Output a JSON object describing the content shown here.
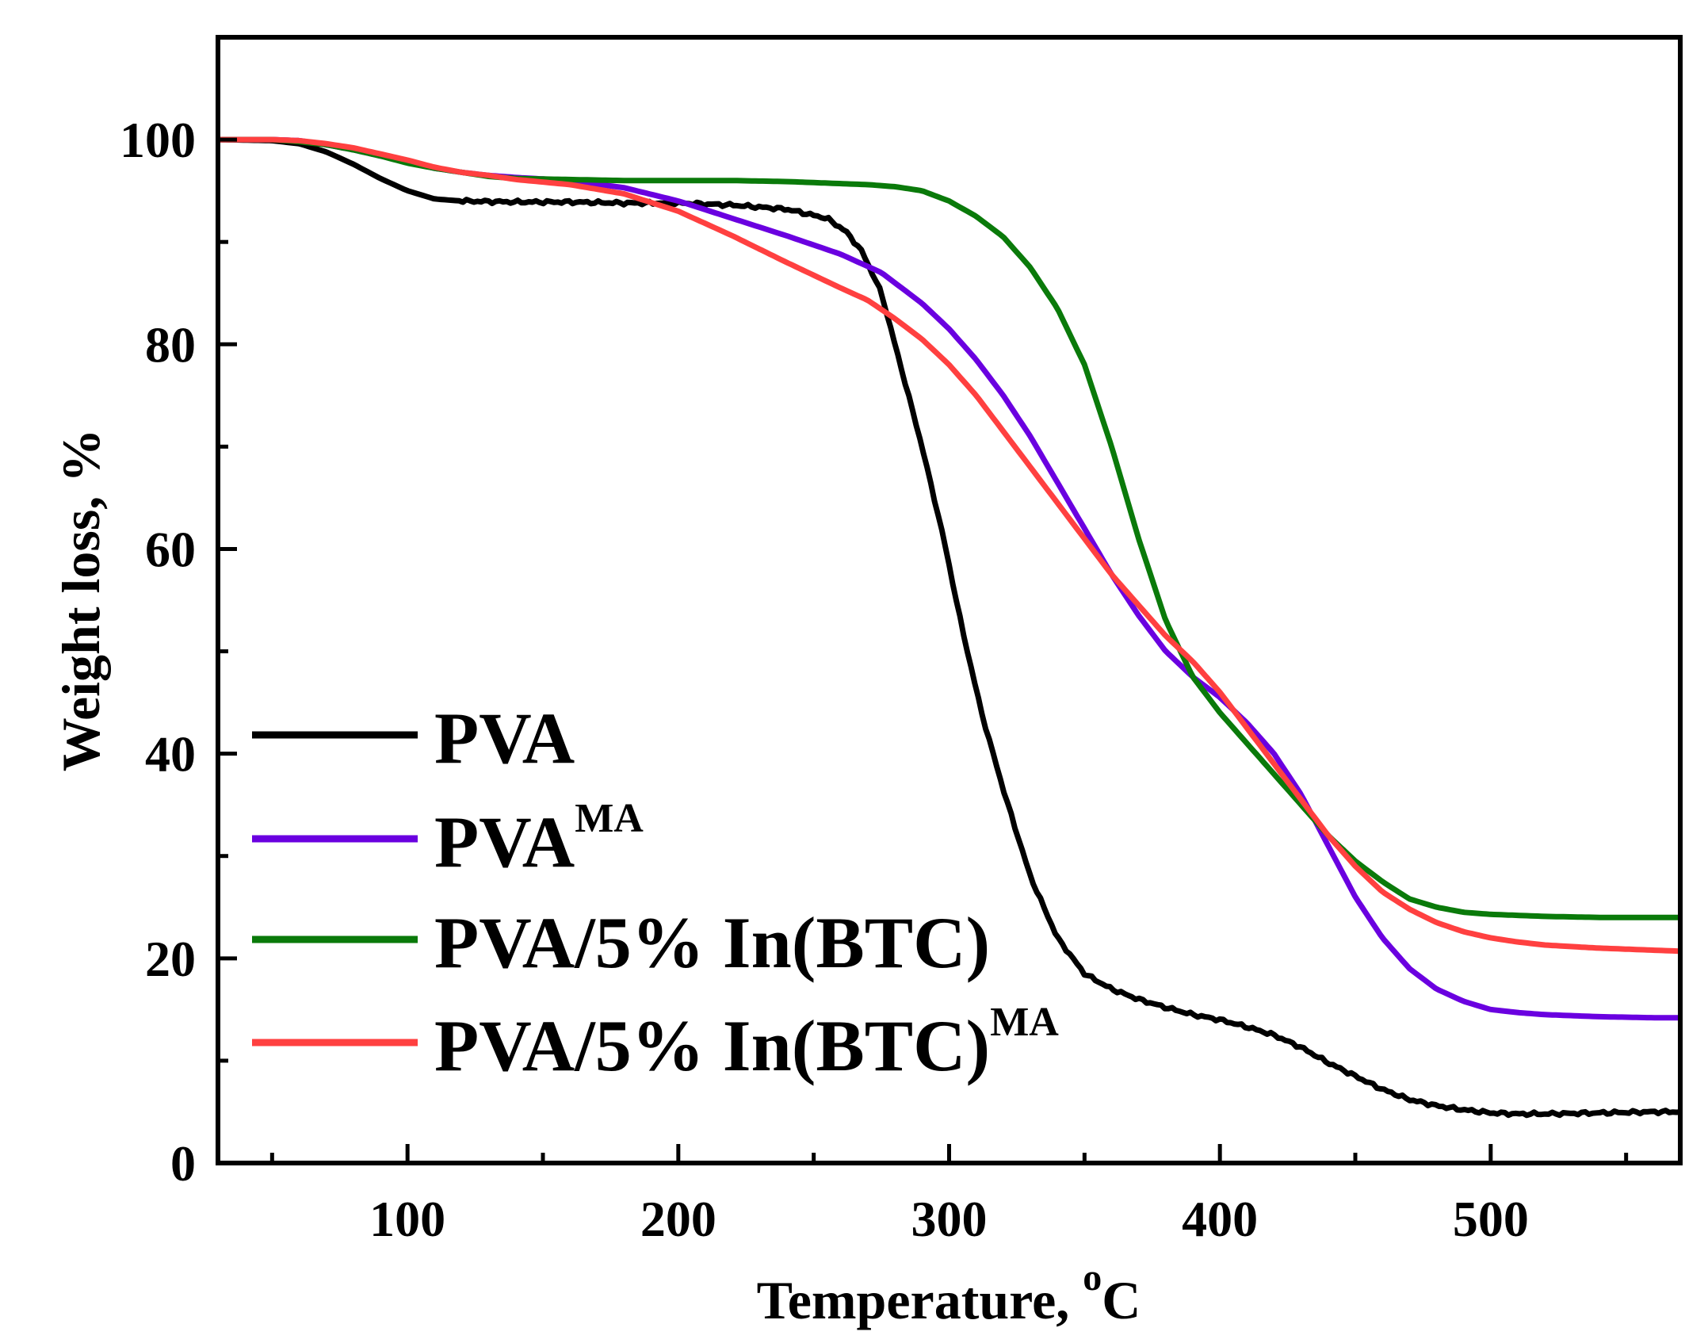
{
  "chart_data": {
    "type": "line",
    "title": "",
    "xlabel": "Temperature, ",
    "xlabel_sup": "o",
    "xlabel_unit": "C",
    "ylabel": "Weight loss, %",
    "xlim": [
      30,
      570
    ],
    "ylim": [
      0,
      110
    ],
    "x_ticks": [
      100,
      200,
      300,
      400,
      500
    ],
    "x_tick_labels": [
      "100",
      "200",
      "300",
      "400",
      "500"
    ],
    "x_minor_ticks": [
      50,
      150,
      250,
      350,
      450,
      550
    ],
    "y_ticks": [
      0,
      20,
      40,
      60,
      80,
      100
    ],
    "y_tick_labels": [
      "0",
      "20",
      "40",
      "60",
      "80",
      "100"
    ],
    "y_minor_ticks": [
      10,
      30,
      50,
      70,
      90
    ],
    "legend_position": "lower-left",
    "series": [
      {
        "name": "PVA",
        "name_sup": "",
        "color": "#000000",
        "noisy": true,
        "points": [
          [
            30,
            100
          ],
          [
            50,
            99.9
          ],
          [
            60,
            99.6
          ],
          [
            70,
            98.8
          ],
          [
            80,
            97.6
          ],
          [
            90,
            96.2
          ],
          [
            100,
            95
          ],
          [
            110,
            94.2
          ],
          [
            120,
            94
          ],
          [
            140,
            93.9
          ],
          [
            160,
            93.9
          ],
          [
            180,
            93.8
          ],
          [
            200,
            93.8
          ],
          [
            220,
            93.6
          ],
          [
            240,
            93.2
          ],
          [
            255,
            92.3
          ],
          [
            262,
            91
          ],
          [
            268,
            89
          ],
          [
            275,
            85
          ],
          [
            282,
            78
          ],
          [
            290,
            70
          ],
          [
            298,
            61
          ],
          [
            305,
            52
          ],
          [
            312,
            44
          ],
          [
            320,
            36.5
          ],
          [
            330,
            28
          ],
          [
            340,
            22
          ],
          [
            350,
            18.5
          ],
          [
            360,
            17
          ],
          [
            370,
            16
          ],
          [
            380,
            15.2
          ],
          [
            390,
            14.5
          ],
          [
            400,
            14
          ],
          [
            410,
            13.3
          ],
          [
            420,
            12.5
          ],
          [
            430,
            11.3
          ],
          [
            440,
            9.8
          ],
          [
            450,
            8.5
          ],
          [
            460,
            7.2
          ],
          [
            470,
            6.2
          ],
          [
            480,
            5.6
          ],
          [
            490,
            5.2
          ],
          [
            500,
            4.9
          ],
          [
            510,
            4.8
          ],
          [
            520,
            4.8
          ],
          [
            540,
            4.9
          ],
          [
            560,
            5
          ],
          [
            570,
            5
          ]
        ]
      },
      {
        "name": "PVA",
        "name_sup": "MA",
        "color": "#6a00e0",
        "noisy": false,
        "points": [
          [
            30,
            100
          ],
          [
            50,
            100
          ],
          [
            60,
            99.9
          ],
          [
            70,
            99.5
          ],
          [
            80,
            99
          ],
          [
            90,
            98.4
          ],
          [
            100,
            97.8
          ],
          [
            110,
            97.2
          ],
          [
            120,
            96.8
          ],
          [
            130,
            96.5
          ],
          [
            140,
            96.3
          ],
          [
            160,
            96
          ],
          [
            180,
            95.3
          ],
          [
            200,
            94
          ],
          [
            220,
            92.3
          ],
          [
            240,
            90.6
          ],
          [
            260,
            88.8
          ],
          [
            275,
            87
          ],
          [
            290,
            84
          ],
          [
            300,
            81.5
          ],
          [
            310,
            78.5
          ],
          [
            320,
            75
          ],
          [
            330,
            71
          ],
          [
            340,
            66.5
          ],
          [
            350,
            62
          ],
          [
            360,
            57.5
          ],
          [
            370,
            53.5
          ],
          [
            380,
            50
          ],
          [
            390,
            47.5
          ],
          [
            400,
            45.5
          ],
          [
            410,
            43
          ],
          [
            420,
            40
          ],
          [
            430,
            36
          ],
          [
            440,
            31
          ],
          [
            450,
            26
          ],
          [
            460,
            22
          ],
          [
            470,
            19
          ],
          [
            480,
            17
          ],
          [
            490,
            15.8
          ],
          [
            500,
            15
          ],
          [
            510,
            14.7
          ],
          [
            520,
            14.5
          ],
          [
            540,
            14.3
          ],
          [
            560,
            14.2
          ],
          [
            570,
            14.2
          ]
        ]
      },
      {
        "name": "PVA/5% In(BTC)",
        "name_sup": "",
        "color": "#0a7a0a",
        "noisy": false,
        "points": [
          [
            30,
            100
          ],
          [
            50,
            100
          ],
          [
            60,
            99.8
          ],
          [
            70,
            99.5
          ],
          [
            80,
            99
          ],
          [
            90,
            98.4
          ],
          [
            100,
            97.7
          ],
          [
            110,
            97.2
          ],
          [
            120,
            96.8
          ],
          [
            130,
            96.4
          ],
          [
            140,
            96.2
          ],
          [
            160,
            96.1
          ],
          [
            180,
            96
          ],
          [
            200,
            96
          ],
          [
            220,
            96
          ],
          [
            240,
            95.9
          ],
          [
            260,
            95.7
          ],
          [
            270,
            95.6
          ],
          [
            280,
            95.4
          ],
          [
            290,
            95
          ],
          [
            300,
            94
          ],
          [
            310,
            92.5
          ],
          [
            320,
            90.5
          ],
          [
            330,
            87.5
          ],
          [
            340,
            83.5
          ],
          [
            350,
            78
          ],
          [
            360,
            70
          ],
          [
            370,
            61
          ],
          [
            375,
            57
          ],
          [
            380,
            53
          ],
          [
            390,
            47.5
          ],
          [
            400,
            44
          ],
          [
            410,
            41
          ],
          [
            420,
            38
          ],
          [
            430,
            35
          ],
          [
            440,
            32
          ],
          [
            450,
            29.5
          ],
          [
            460,
            27.5
          ],
          [
            470,
            25.8
          ],
          [
            480,
            25
          ],
          [
            490,
            24.5
          ],
          [
            500,
            24.3
          ],
          [
            520,
            24.1
          ],
          [
            540,
            24
          ],
          [
            560,
            24
          ],
          [
            570,
            24
          ]
        ]
      },
      {
        "name": "PVA/5% In(BTC)",
        "name_sup": "MA",
        "color": "#ff4040",
        "noisy": false,
        "points": [
          [
            30,
            100
          ],
          [
            50,
            100
          ],
          [
            60,
            99.9
          ],
          [
            70,
            99.6
          ],
          [
            80,
            99.2
          ],
          [
            90,
            98.6
          ],
          [
            100,
            98
          ],
          [
            110,
            97.3
          ],
          [
            120,
            96.8
          ],
          [
            130,
            96.5
          ],
          [
            140,
            96.1
          ],
          [
            160,
            95.6
          ],
          [
            180,
            94.7
          ],
          [
            200,
            93
          ],
          [
            210,
            91.8
          ],
          [
            220,
            90.6
          ],
          [
            230,
            89.3
          ],
          [
            240,
            88
          ],
          [
            260,
            85.5
          ],
          [
            270,
            84.3
          ],
          [
            280,
            82.5
          ],
          [
            290,
            80.5
          ],
          [
            300,
            78
          ],
          [
            310,
            75
          ],
          [
            320,
            71.5
          ],
          [
            330,
            68
          ],
          [
            340,
            64.5
          ],
          [
            350,
            61
          ],
          [
            360,
            57.5
          ],
          [
            370,
            54.5
          ],
          [
            380,
            51.5
          ],
          [
            390,
            49
          ],
          [
            400,
            46
          ],
          [
            410,
            42.5
          ],
          [
            420,
            39
          ],
          [
            430,
            35.5
          ],
          [
            440,
            32
          ],
          [
            450,
            29
          ],
          [
            460,
            26.5
          ],
          [
            470,
            24.8
          ],
          [
            480,
            23.5
          ],
          [
            490,
            22.6
          ],
          [
            500,
            22
          ],
          [
            510,
            21.6
          ],
          [
            520,
            21.3
          ],
          [
            540,
            21
          ],
          [
            560,
            20.8
          ],
          [
            570,
            20.7
          ]
        ]
      }
    ]
  }
}
